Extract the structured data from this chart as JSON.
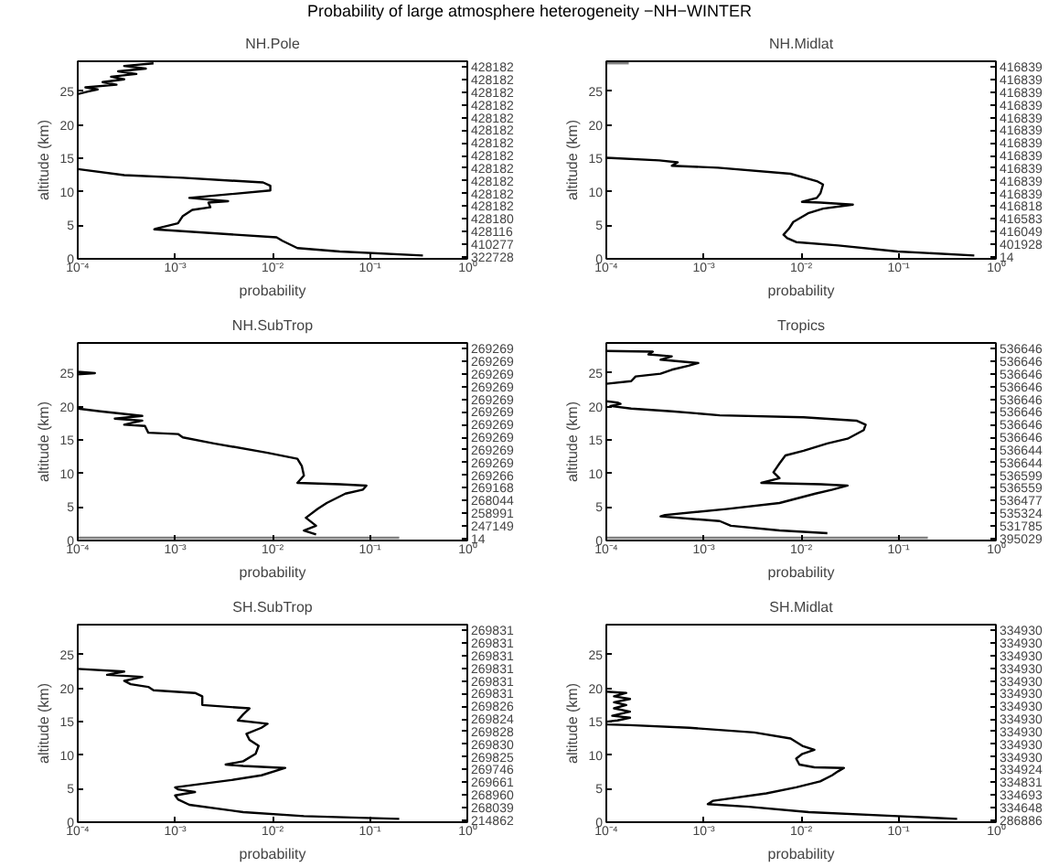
{
  "chart_data": [
    {
      "type": "line",
      "title": "NH.Pole",
      "xlabel": "probability",
      "ylabel": "altitude (km)",
      "annotations": [
        "Probability of large atmosphere heterogeneity −NH−WINTER"
      ],
      "log": "x",
      "xlim": [
        0.0001,
        1
      ],
      "ylim": [
        0,
        29.5
      ],
      "xticks": [
        {
          "value": 0.0001,
          "label": "10⁻⁴"
        },
        {
          "value": 0.001,
          "label": "10⁻³"
        },
        {
          "value": 0.01,
          "label": "10⁻²"
        },
        {
          "value": 0.1,
          "label": "10⁻¹"
        },
        {
          "value": 1,
          "label": "10⁰"
        }
      ],
      "yticks": [
        0,
        5,
        10,
        15,
        20,
        25
      ],
      "y2_categories": [
        "428182",
        "428182",
        "428182",
        "428182",
        "428182",
        "428182",
        "428182",
        "428182",
        "428182",
        "428182",
        "428182",
        "428182",
        "428180",
        "428116",
        "410277",
        "322728"
      ],
      "series": [
        {
          "color": "#000000",
          "x": [
            0.35,
            0.049,
            0.018,
            0.0126,
            0.011,
            0.00061,
            0.00063,
            0.00107,
            0.0012,
            0.0015,
            0.0023,
            0.0022,
            0.0035,
            0.0014,
            0.0095,
            0.0095,
            0.008,
            0.0012,
            0.0003,
            0.0001
          ],
          "values": [
            0.5,
            1.1,
            1.6,
            2.7,
            3.2,
            4.4,
            4.5,
            5.3,
            6.4,
            7.3,
            7.7,
            8.4,
            8.6,
            9.1,
            10.2,
            10.9,
            11.4,
            12.1,
            12.5,
            13.4
          ]
        },
        {
          "color": "#000000",
          "x": [
            0.0001,
            0.00013,
            0.00016,
            0.00012,
            0.00025,
            0.00018,
            0.0003,
            0.00022,
            0.0004,
            0.00026,
            0.0005,
            0.0003,
            0.0006
          ],
          "values": [
            24.6,
            25.0,
            25.3,
            25.6,
            26.0,
            26.4,
            26.8,
            27.2,
            27.6,
            28.0,
            28.4,
            28.8,
            29.2
          ]
        }
      ]
    },
    {
      "type": "line",
      "title": "NH.Midlat",
      "xlabel": "probability",
      "ylabel": "altitude (km)",
      "log": "x",
      "xlim": [
        0.0001,
        1
      ],
      "ylim": [
        0,
        29.5
      ],
      "xticks": [
        {
          "value": 0.0001,
          "label": "10⁻⁴"
        },
        {
          "value": 0.001,
          "label": "10⁻³"
        },
        {
          "value": 0.01,
          "label": "10⁻²"
        },
        {
          "value": 0.1,
          "label": "10⁻¹"
        },
        {
          "value": 1,
          "label": "10⁰"
        }
      ],
      "yticks": [
        0,
        5,
        10,
        15,
        20,
        25
      ],
      "y2_categories": [
        "416839",
        "416839",
        "416839",
        "416839",
        "416839",
        "416839",
        "416839",
        "416839",
        "416839",
        "416839",
        "416839",
        "416818",
        "416583",
        "416049",
        "401928",
        "14"
      ],
      "series": [
        {
          "color": "#000000",
          "x": [
            0.6,
            0.098,
            0.024,
            0.0089,
            0.0072,
            0.0066,
            0.0075,
            0.0083,
            0.0118,
            0.0168,
            0.034,
            0.0158,
            0.0102,
            0.0145,
            0.0158,
            0.0168,
            0.0145,
            0.0078,
            0.0014,
            0.00047,
            0.00054,
            0.00035,
            0.0001
          ],
          "values": [
            0.5,
            1.1,
            2.0,
            2.5,
            3.1,
            3.6,
            4.5,
            5.5,
            6.8,
            7.5,
            8.1,
            8.4,
            8.5,
            9.1,
            9.8,
            11.1,
            11.6,
            12.7,
            13.6,
            13.9,
            14.4,
            14.7,
            15.1
          ]
        },
        {
          "color": "#808080",
          "x": [
            0.0001,
            0.00017
          ],
          "values": [
            29.2,
            29.2
          ]
        }
      ]
    },
    {
      "type": "line",
      "title": "NH.SubTrop",
      "xlabel": "probability",
      "ylabel": "altitude (km)",
      "log": "x",
      "xlim": [
        0.0001,
        1
      ],
      "ylim": [
        0,
        29.5
      ],
      "xticks": [
        {
          "value": 0.0001,
          "label": "10⁻⁴"
        },
        {
          "value": 0.001,
          "label": "10⁻³"
        },
        {
          "value": 0.01,
          "label": "10⁻²"
        },
        {
          "value": 0.1,
          "label": "10⁻¹"
        },
        {
          "value": 1,
          "label": "10⁰"
        }
      ],
      "yticks": [
        0,
        5,
        10,
        15,
        20,
        25
      ],
      "y2_categories": [
        "269269",
        "269269",
        "269269",
        "269269",
        "269269",
        "269269",
        "269269",
        "269269",
        "269269",
        "269269",
        "269266",
        "269168",
        "268044",
        "258991",
        "247149",
        "14"
      ],
      "series": [
        {
          "color": "#808080",
          "x": [
            0.0001,
            0.2
          ],
          "values": [
            0.4,
            0.4
          ]
        },
        {
          "color": "#000000",
          "x": [
            0.028,
            0.021,
            0.028,
            0.022,
            0.029,
            0.036,
            0.056,
            0.085,
            0.092,
            0.049,
            0.018,
            0.021,
            0.02,
            0.018,
            0.0089,
            0.0025,
            0.0012,
            0.00107,
            0.00053,
            0.00049,
            0.0003,
            0.00046,
            0.00024,
            0.00046,
            0.00017,
            0.0001
          ],
          "values": [
            0.9,
            1.5,
            2.2,
            3.4,
            4.7,
            5.6,
            7.0,
            7.6,
            8.2,
            8.4,
            8.6,
            9.7,
            11.1,
            12.2,
            13.1,
            14.5,
            15.4,
            15.9,
            16.1,
            17.1,
            17.3,
            17.9,
            18.2,
            18.6,
            19.3,
            19.7
          ]
        },
        {
          "color": "#000000",
          "x": [
            0.0001,
            0.00015,
            0.0001
          ],
          "values": [
            24.8,
            25.0,
            25.2
          ]
        }
      ]
    },
    {
      "type": "line",
      "title": "Tropics",
      "xlabel": "probability",
      "ylabel": "altitude (km)",
      "log": "x",
      "xlim": [
        0.0001,
        1
      ],
      "ylim": [
        0,
        29.5
      ],
      "xticks": [
        {
          "value": 0.0001,
          "label": "10⁻⁴"
        },
        {
          "value": 0.001,
          "label": "10⁻³"
        },
        {
          "value": 0.01,
          "label": "10⁻²"
        },
        {
          "value": 0.1,
          "label": "10⁻¹"
        },
        {
          "value": 1,
          "label": "10⁰"
        }
      ],
      "yticks": [
        0,
        5,
        10,
        15,
        20,
        25
      ],
      "y2_categories": [
        "536646",
        "536646",
        "536646",
        "536646",
        "536646",
        "536646",
        "536646",
        "536646",
        "536644",
        "536644",
        "536599",
        "536559",
        "536477",
        "535324",
        "531785",
        "395029"
      ],
      "series": [
        {
          "color": "#808080",
          "x": [
            0.0001,
            0.2
          ],
          "values": [
            0.4,
            0.4
          ]
        },
        {
          "color": "#000000",
          "x": [
            0.0186,
            0.006,
            0.0019,
            0.00146,
            0.00036,
            0.0004,
            0.0017,
            0.006,
            0.014,
            0.021,
            0.03,
            0.016,
            0.0039,
            0.006,
            0.0052,
            0.006,
            0.0069,
            0.0106,
            0.0186,
            0.03,
            0.044,
            0.046,
            0.037,
            0.0106,
            0.00146,
            0.00047,
            0.00018,
            0.00011,
            0.00014,
            0.00013,
            0.0001
          ],
          "values": [
            1.1,
            1.5,
            2.2,
            2.9,
            3.6,
            3.8,
            4.7,
            5.6,
            7.0,
            7.6,
            8.2,
            8.4,
            8.6,
            9.3,
            10.2,
            11.5,
            12.7,
            13.4,
            14.5,
            15.2,
            16.5,
            17.3,
            17.9,
            18.4,
            18.7,
            19.3,
            19.7,
            20.1,
            20.4,
            20.6,
            20.8
          ]
        },
        {
          "color": "#000000",
          "x": [
            0.0001,
            0.00018,
            0.0002,
            0.00036,
            0.00047,
            0.0007,
            0.00088,
            0.00036,
            0.00047,
            0.00027,
            0.0003,
            0.0001
          ],
          "values": [
            23.4,
            23.8,
            24.5,
            24.9,
            25.5,
            26.1,
            26.5,
            27.0,
            27.5,
            27.8,
            28.2,
            28.3
          ]
        }
      ]
    },
    {
      "type": "line",
      "title": "SH.SubTrop",
      "xlabel": "probability",
      "ylabel": "altitude (km)",
      "log": "x",
      "xlim": [
        0.0001,
        1
      ],
      "ylim": [
        0,
        29.5
      ],
      "xticks": [
        {
          "value": 0.0001,
          "label": "10⁻⁴"
        },
        {
          "value": 0.001,
          "label": "10⁻³"
        },
        {
          "value": 0.01,
          "label": "10⁻²"
        },
        {
          "value": 0.1,
          "label": "10⁻¹"
        },
        {
          "value": 1,
          "label": "10⁰"
        }
      ],
      "yticks": [
        0,
        5,
        10,
        15,
        20,
        25
      ],
      "y2_categories": [
        "269831",
        "269831",
        "269831",
        "269831",
        "269831",
        "269831",
        "269826",
        "269824",
        "269828",
        "269830",
        "269825",
        "269746",
        "269661",
        "268960",
        "268039",
        "214862"
      ],
      "series": [
        {
          "color": "#000000",
          "x": [
            0.2,
            0.021,
            0.005,
            0.0014,
            0.00107,
            0.001,
            0.0016,
            0.00107,
            0.001,
            0.0038,
            0.0077,
            0.0135,
            0.005,
            0.0033,
            0.005,
            0.0067,
            0.0072,
            0.0058,
            0.0054,
            0.0077,
            0.0089,
            0.0044,
            0.005,
            0.0058,
            0.0019,
            0.0019,
            0.0016,
            0.0006,
            0.00053,
            0.00035,
            0.0003,
            0.00046,
            0.0002,
            0.0003,
            0.0001
          ],
          "values": [
            0.5,
            0.9,
            1.5,
            2.6,
            3.4,
            4.0,
            4.5,
            4.9,
            5.2,
            6.3,
            7.0,
            8.1,
            8.4,
            8.6,
            9.1,
            10.2,
            11.4,
            12.3,
            13.2,
            14.1,
            14.7,
            15.2,
            16.1,
            17.0,
            17.5,
            18.8,
            19.3,
            19.7,
            20.2,
            20.6,
            21.1,
            21.7,
            22.0,
            22.5,
            22.9
          ]
        }
      ]
    },
    {
      "type": "line",
      "title": "SH.Midlat",
      "xlabel": "probability",
      "ylabel": "altitude (km)",
      "log": "x",
      "xlim": [
        0.0001,
        1
      ],
      "ylim": [
        0,
        29.5
      ],
      "xticks": [
        {
          "value": 0.0001,
          "label": "10⁻⁴"
        },
        {
          "value": 0.001,
          "label": "10⁻³"
        },
        {
          "value": 0.01,
          "label": "10⁻²"
        },
        {
          "value": 0.1,
          "label": "10⁻¹"
        },
        {
          "value": 1,
          "label": "10⁰"
        }
      ],
      "yticks": [
        0,
        5,
        10,
        15,
        20,
        25
      ],
      "y2_categories": [
        "334930",
        "334930",
        "334930",
        "334930",
        "334930",
        "334930",
        "334930",
        "334930",
        "334930",
        "334930",
        "334930",
        "334924",
        "334831",
        "334693",
        "334648",
        "286886"
      ],
      "series": [
        {
          "color": "#000000",
          "x": [
            0.4,
            0.098,
            0.012,
            0.0029,
            0.0011,
            0.00125,
            0.0044,
            0.0089,
            0.0157,
            0.0208,
            0.024,
            0.0275,
            0.0137,
            0.0096,
            0.0089,
            0.0103,
            0.0137,
            0.0103,
            0.0078,
            0.0033,
            0.00071,
            0.000175,
            0.0001,
            0.0001,
            0.00013,
            0.000175,
            0.000115,
            0.000175,
            0.00012,
            0.00016,
            0.00012,
            0.000175,
            0.00012,
            0.00016,
            0.0001
          ],
          "values": [
            0.5,
            0.9,
            1.5,
            2.3,
            2.7,
            3.2,
            4.3,
            5.2,
            6.1,
            7.0,
            7.6,
            8.1,
            8.2,
            8.6,
            9.5,
            10.2,
            10.8,
            11.4,
            12.5,
            13.4,
            14.1,
            14.5,
            14.6,
            15.0,
            15.2,
            15.6,
            15.9,
            16.5,
            17.0,
            17.5,
            17.9,
            18.4,
            18.8,
            19.3,
            19.5
          ]
        }
      ]
    }
  ]
}
